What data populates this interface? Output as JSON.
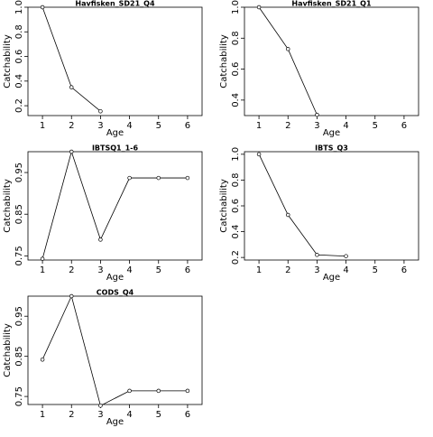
{
  "chart_data": [
    {
      "type": "line",
      "title": "Havfisken_SD21_Q4",
      "xlabel": "Age",
      "ylabel": "Catchability",
      "xlim": [
        0.5,
        6.5
      ],
      "ylim": [
        0.12,
        1.0
      ],
      "x_ticks": [
        "1",
        "2",
        "3",
        "4",
        "5",
        "6"
      ],
      "y_ticks": [
        "0.2",
        "0.4",
        "0.6",
        "0.8",
        "1.0"
      ],
      "series": [
        {
          "x": [
            1,
            2,
            3
          ],
          "y": [
            1.0,
            0.35,
            0.155
          ]
        }
      ],
      "grid": false,
      "point_style": "open-circle",
      "colors": {
        "line": "#000000",
        "marker_fill": "#ffffff",
        "axes": "#000000"
      }
    },
    {
      "type": "line",
      "title": "Havfisken_SD21_Q1",
      "xlabel": "Age",
      "ylabel": "Catchability",
      "xlim": [
        0.5,
        6.5
      ],
      "ylim": [
        0.3,
        1.0
      ],
      "x_ticks": [
        "1",
        "2",
        "3",
        "4",
        "5",
        "6"
      ],
      "y_ticks": [
        "0.4",
        "0.6",
        "0.8",
        "1.0"
      ],
      "series": [
        {
          "x": [
            1,
            2,
            3
          ],
          "y": [
            1.0,
            0.73,
            0.305
          ]
        }
      ],
      "grid": false,
      "point_style": "open-circle",
      "colors": {
        "line": "#000000",
        "marker_fill": "#ffffff",
        "axes": "#000000"
      }
    },
    {
      "type": "line",
      "title": "IBTSQ1_1-6",
      "xlabel": "Age",
      "ylabel": "Catchability",
      "xlim": [
        0.5,
        6.5
      ],
      "ylim": [
        0.74,
        1.0
      ],
      "x_ticks": [
        "1",
        "2",
        "3",
        "4",
        "5",
        "6"
      ],
      "y_ticks": [
        "0.75",
        "0.85",
        "0.95"
      ],
      "series": [
        {
          "x": [
            1,
            2,
            3,
            4,
            5,
            6
          ],
          "y": [
            0.743,
            1.0,
            0.789,
            0.937,
            0.937,
            0.937
          ]
        }
      ],
      "grid": false,
      "point_style": "open-circle",
      "colors": {
        "line": "#000000",
        "marker_fill": "#ffffff",
        "axes": "#000000"
      }
    },
    {
      "type": "line",
      "title": "IBTS_Q3",
      "xlabel": "Age",
      "ylabel": "Catchability",
      "xlim": [
        0.5,
        6.5
      ],
      "ylim": [
        0.18,
        1.02
      ],
      "x_ticks": [
        "1",
        "2",
        "3",
        "4",
        "5",
        "6"
      ],
      "y_ticks": [
        "0.2",
        "0.4",
        "0.6",
        "0.8",
        "1.0"
      ],
      "series": [
        {
          "x": [
            1,
            2,
            3,
            4
          ],
          "y": [
            1.0,
            0.53,
            0.22,
            0.21
          ]
        }
      ],
      "grid": false,
      "point_style": "open-circle",
      "colors": {
        "line": "#000000",
        "marker_fill": "#ffffff",
        "axes": "#000000"
      }
    },
    {
      "type": "line",
      "title": "CODS_Q4",
      "xlabel": "Age",
      "ylabel": "Catchability",
      "xlim": [
        0.5,
        6.5
      ],
      "ylim": [
        0.73,
        1.0
      ],
      "x_ticks": [
        "1",
        "2",
        "3",
        "4",
        "5",
        "6"
      ],
      "y_ticks": [
        "0.75",
        "0.85",
        "0.95"
      ],
      "series": [
        {
          "x": [
            1,
            2,
            3,
            4,
            5,
            6
          ],
          "y": [
            0.842,
            1.0,
            0.727,
            0.764,
            0.764,
            0.764
          ]
        }
      ],
      "grid": false,
      "point_style": "open-circle",
      "colors": {
        "line": "#000000",
        "marker_fill": "#ffffff",
        "axes": "#000000"
      }
    }
  ]
}
